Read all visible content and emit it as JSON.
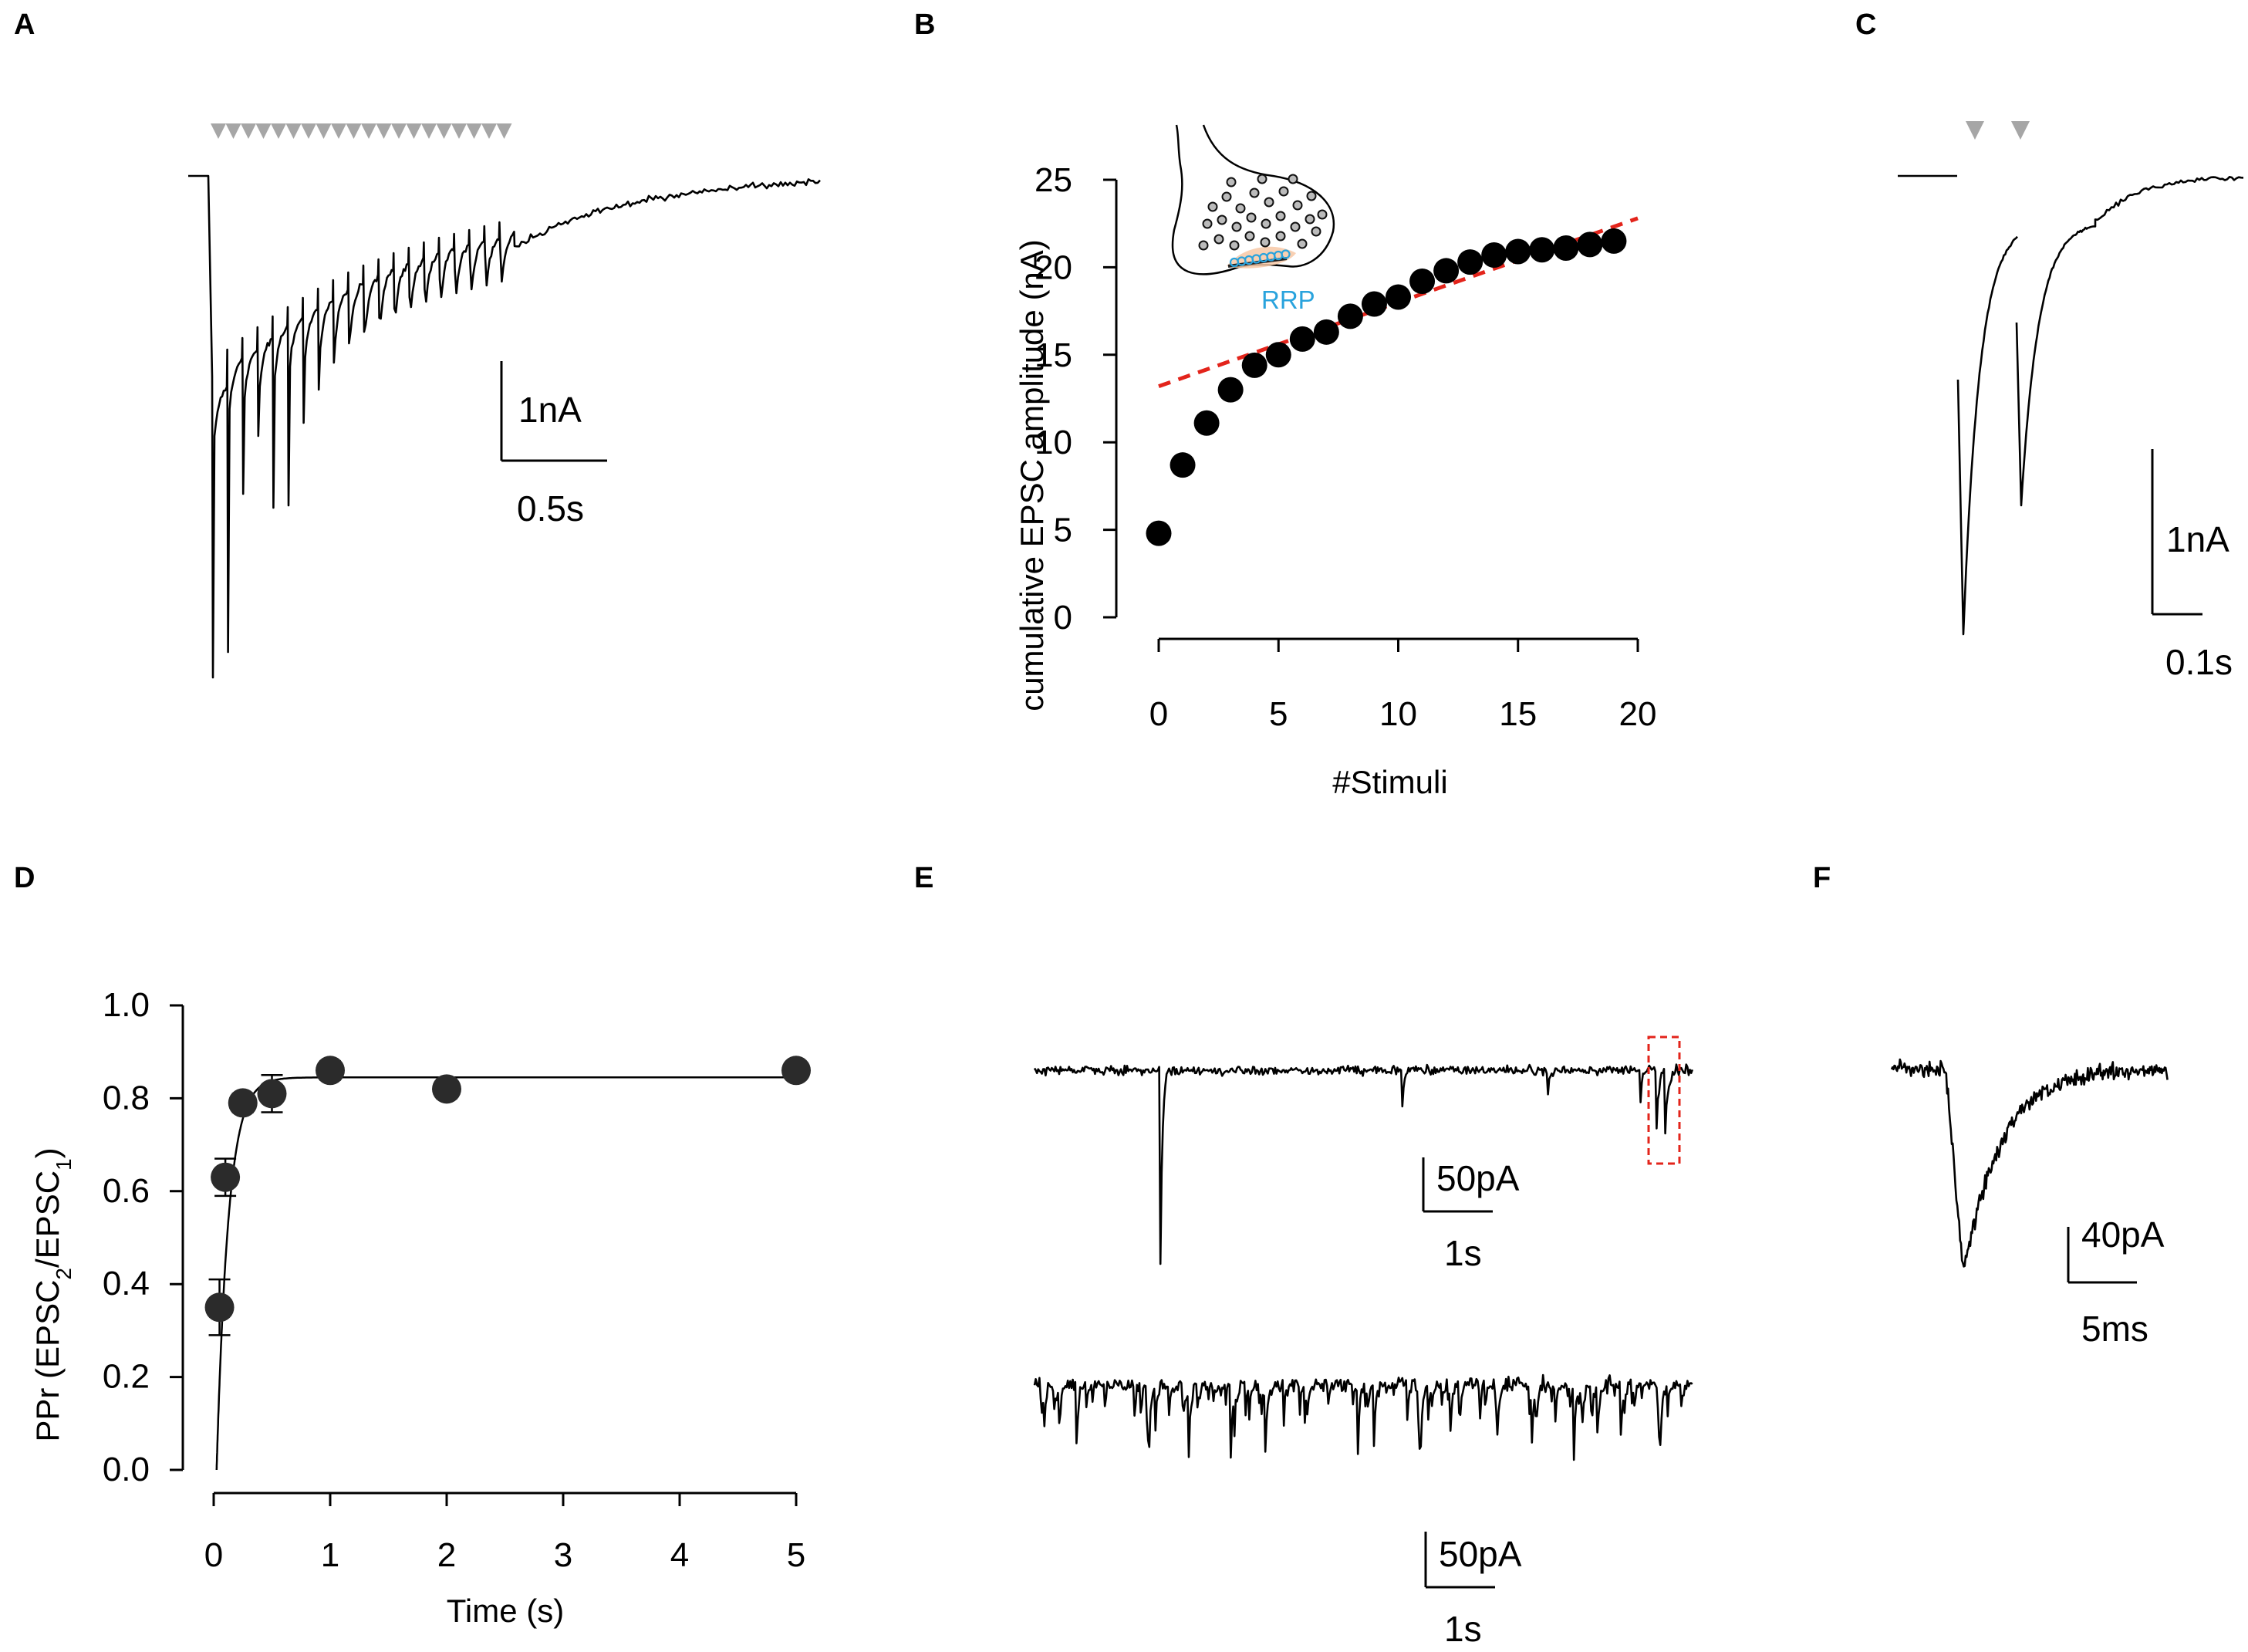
{
  "panels": {
    "a": {
      "label": "A",
      "scalebar": {
        "y": "1nA",
        "x": "0.5s"
      },
      "stimuli_count": 20
    },
    "b": {
      "label": "B",
      "inset_label": "RRP"
    },
    "c": {
      "label": "C",
      "scalebar": {
        "y": "1nA",
        "x": "0.1s"
      },
      "stimuli_count": 2
    },
    "d": {
      "label": "D"
    },
    "e": {
      "label": "E",
      "scalebar_top": {
        "y": "50pA",
        "x": "1s"
      },
      "scalebar_bottom": {
        "y": "50pA",
        "x": "1s"
      }
    },
    "f": {
      "label": "F",
      "scalebar": {
        "y": "40pA",
        "x": "5ms"
      }
    }
  },
  "colors": {
    "fit_line": "#e3241b",
    "stimulus_marker": "#a6a6a6",
    "rrp_text": "#29a3dd",
    "inset_box": "#e3241b"
  },
  "chart_data": [
    {
      "id": "B",
      "type": "scatter",
      "xlabel": "#Stimuli",
      "ylabel": "cumulative EPSC amplitude (nA)",
      "xlim": [
        0,
        20
      ],
      "ylim": [
        0,
        25
      ],
      "xticks": [
        "0",
        "5",
        "10",
        "15",
        "20"
      ],
      "yticks": [
        "0",
        "5",
        "10",
        "15",
        "20",
        "25"
      ],
      "x": [
        0,
        1,
        2,
        3,
        4,
        5,
        6,
        7,
        8,
        9,
        10,
        11,
        12,
        13,
        14,
        15,
        16,
        17,
        18,
        19
      ],
      "y": [
        4.8,
        8.7,
        11.1,
        13.0,
        14.4,
        15.0,
        15.9,
        16.3,
        17.2,
        17.9,
        18.3,
        19.2,
        19.8,
        20.3,
        20.7,
        20.9,
        21.0,
        21.1,
        21.3,
        21.5
      ],
      "fit": {
        "type": "linear",
        "intercept": 13.2,
        "slope": 0.48,
        "x_range": [
          0,
          20
        ],
        "style": "dashed"
      }
    },
    {
      "id": "D",
      "type": "scatter",
      "xlabel": "Time (s)",
      "ylabel": "PPr (EPSC2/EPSC1)",
      "ylabel_parts": {
        "pre": "PPr (EPSC",
        "sub1": "2",
        "mid": "/EPSC",
        "sub2": "1",
        "post": ")"
      },
      "xlim": [
        0,
        5
      ],
      "ylim": [
        0,
        1.0
      ],
      "xticks": [
        "0",
        "1",
        "2",
        "3",
        "4",
        "5"
      ],
      "yticks": [
        "0.0",
        "0.2",
        "0.4",
        "0.6",
        "0.8",
        "1.0"
      ],
      "x": [
        0.05,
        0.1,
        0.25,
        0.5,
        1,
        2,
        5
      ],
      "y": [
        0.35,
        0.63,
        0.79,
        0.81,
        0.86,
        0.82,
        0.86
      ],
      "err": [
        0.06,
        0.04,
        0.02,
        0.04,
        0.02,
        0.02,
        0.01
      ],
      "fit": {
        "type": "exponential recovery",
        "plateau": 0.845,
        "tau": 0.1,
        "x0": 0.025
      }
    }
  ]
}
